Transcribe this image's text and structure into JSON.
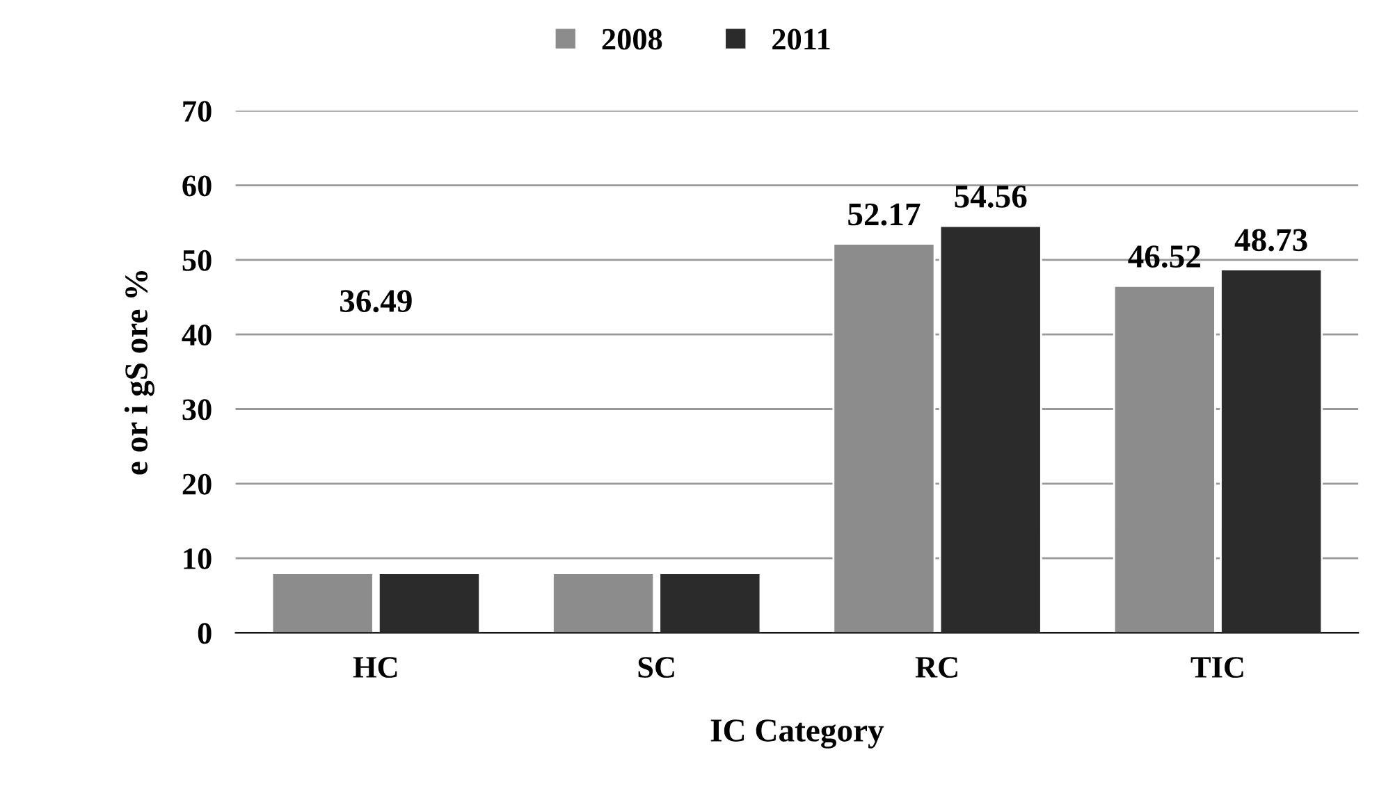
{
  "chart_data": {
    "type": "bar",
    "categories": [
      "HC",
      "SC",
      "RC",
      "TIC"
    ],
    "series": [
      {
        "name": "2008",
        "color": "#8c8c8c",
        "values": [
          8,
          8,
          52.17,
          46.52
        ],
        "value_labels": [
          null,
          null,
          "52.17",
          "46.52"
        ]
      },
      {
        "name": "2011",
        "color": "#2b2b2b",
        "values": [
          8,
          8,
          54.56,
          48.73
        ],
        "value_labels": [
          null,
          null,
          "54.56",
          "48.73"
        ]
      }
    ],
    "xlabel": "IC Category",
    "ylabel": "e or i gS ore %",
    "annotations": [
      "36.49"
    ],
    "ylim": [
      0,
      70
    ],
    "yticks": [
      0,
      10,
      20,
      30,
      40,
      50,
      60,
      70
    ],
    "grid": "y",
    "legend": "top"
  }
}
